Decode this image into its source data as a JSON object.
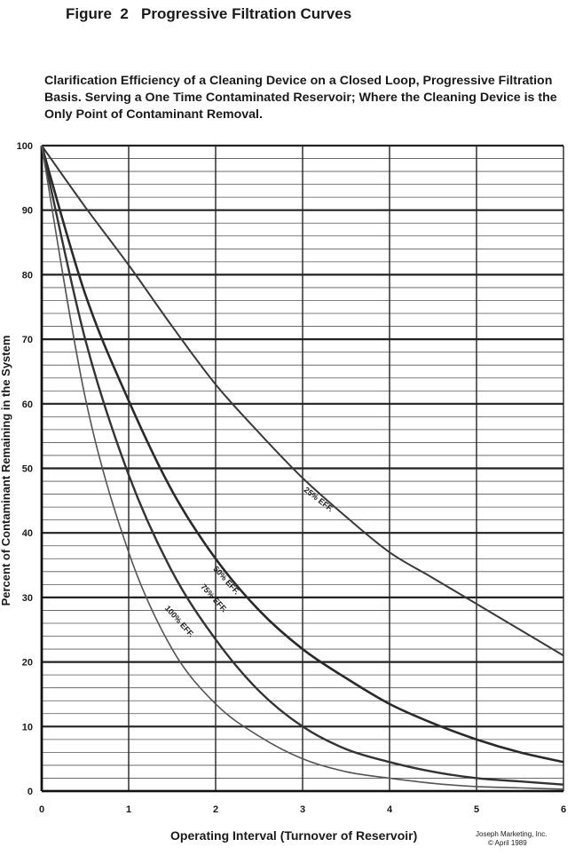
{
  "figure_title": "Figure  2   Progressive Filtration Curves",
  "subtitle": "Clarification Efficiency of a Cleaning Device on a Closed Loop, Progressive Filtration Basis.  Serving a One Time Contaminated Reservoir; Where the Cleaning Device is the Only Point of Contaminant Removal.",
  "credit": {
    "line1": "Joseph Marketing, Inc.",
    "line2": "© April 1989"
  },
  "chart_data": {
    "type": "line",
    "title": "Progressive Filtration Curves",
    "xlabel": "Operating Interval (Turnover of Reservoir)",
    "ylabel": "Percent of Contaminant Remaining in the System",
    "xlim": [
      0,
      6
    ],
    "ylim": [
      0,
      100
    ],
    "x_ticks": [
      0,
      1,
      2,
      3,
      4,
      5,
      6
    ],
    "y_ticks": [
      0,
      10,
      20,
      30,
      40,
      50,
      60,
      70,
      80,
      90,
      100
    ],
    "grid": true,
    "legend": "none (series labeled directly on curves)",
    "series_color": "#333333",
    "x": [
      0,
      0.5,
      1,
      1.5,
      2,
      2.5,
      3,
      3.5,
      4,
      4.5,
      5,
      5.5,
      6
    ],
    "series": [
      {
        "name": "25% EFF.",
        "values": [
          100,
          90.5,
          81.5,
          72,
          63,
          55.5,
          48.5,
          42.5,
          37,
          33,
          29,
          25,
          21
        ]
      },
      {
        "name": "50% EFF.",
        "values": [
          100,
          77,
          60.5,
          46.5,
          36,
          28,
          22,
          17.5,
          13.5,
          10.5,
          8,
          6,
          4.5
        ]
      },
      {
        "name": "75% EFF.",
        "values": [
          100,
          70,
          49,
          34,
          23.5,
          15.5,
          10,
          6.5,
          4.5,
          3,
          2,
          1.5,
          1
        ]
      },
      {
        "name": "100% EFF.",
        "values": [
          100,
          61,
          37,
          22,
          13.5,
          8.5,
          5,
          3,
          2,
          1.2,
          0.7,
          0.5,
          0.3
        ]
      }
    ]
  }
}
